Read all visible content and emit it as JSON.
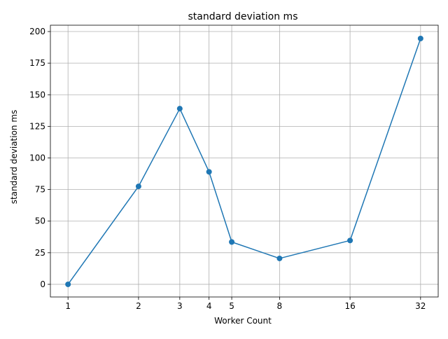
{
  "chart_data": {
    "type": "line",
    "title": "standard deviation ms",
    "xlabel": "Worker Count",
    "ylabel": "standard deviation ms",
    "x_scale": "log2",
    "x": [
      1,
      2,
      3,
      4,
      5,
      8,
      16,
      32
    ],
    "x_tick_labels": [
      "1",
      "2",
      "3",
      "4",
      "5",
      "8",
      "16",
      "32"
    ],
    "series": [
      {
        "values": [
          0,
          77.5,
          139,
          89,
          33.5,
          20.5,
          34.7,
          194.5
        ],
        "color": "#1f77b4",
        "marker": "circle"
      }
    ],
    "yticks": [
      0,
      25,
      50,
      75,
      100,
      125,
      150,
      175,
      200
    ],
    "y_tick_labels": [
      "0",
      "25",
      "50",
      "75",
      "100",
      "125",
      "150",
      "175",
      "200"
    ],
    "ylim": [
      -10,
      205
    ],
    "grid": true
  }
}
